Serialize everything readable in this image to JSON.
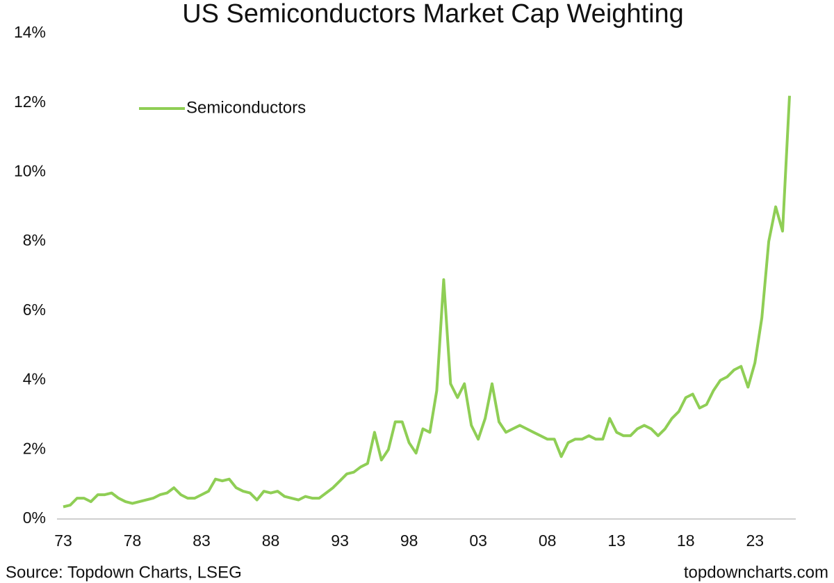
{
  "chart_data": {
    "type": "line",
    "title": "US Semiconductors Market Cap Weighting",
    "source": "Source: Topdown Charts, LSEG",
    "watermark": "topdowncharts.com",
    "legend": "upper left",
    "categories": [
      "73",
      null,
      null,
      null,
      null,
      null,
      null,
      null,
      null,
      null,
      "78",
      null,
      null,
      null,
      null,
      null,
      null,
      null,
      null,
      null,
      "83",
      null,
      null,
      null,
      null,
      null,
      null,
      null,
      null,
      null,
      "88",
      null,
      null,
      null,
      null,
      null,
      null,
      null,
      null,
      null,
      "93",
      null,
      null,
      null,
      null,
      null,
      null,
      null,
      null,
      null,
      "98",
      null,
      null,
      null,
      null,
      null,
      null,
      null,
      null,
      null,
      "03",
      null,
      null,
      null,
      null,
      null,
      null,
      null,
      null,
      null,
      "08",
      null,
      null,
      null,
      null,
      null,
      null,
      null,
      null,
      null,
      "13",
      null,
      null,
      null,
      null,
      null,
      null,
      null,
      null,
      null,
      "18",
      null,
      null,
      null,
      null,
      null,
      null,
      null,
      null,
      null,
      "23",
      null,
      null,
      null,
      null,
      null
    ],
    "series": [
      {
        "name": "Semiconductors",
        "color": "#8fce55",
        "values": [
          0.35,
          0.4,
          0.6,
          0.6,
          0.5,
          0.7,
          0.7,
          0.75,
          0.6,
          0.5,
          0.45,
          0.5,
          0.55,
          0.6,
          0.7,
          0.75,
          0.9,
          0.7,
          0.6,
          0.6,
          0.7,
          0.8,
          1.15,
          1.1,
          1.15,
          0.9,
          0.8,
          0.75,
          0.55,
          0.8,
          0.75,
          0.8,
          0.65,
          0.6,
          0.55,
          0.65,
          0.6,
          0.6,
          0.75,
          0.9,
          1.1,
          1.3,
          1.35,
          1.5,
          1.6,
          2.5,
          1.7,
          2.0,
          2.8,
          2.8,
          2.2,
          1.9,
          2.6,
          2.5,
          3.7,
          6.9,
          3.9,
          3.5,
          3.9,
          2.7,
          2.3,
          2.9,
          3.9,
          2.8,
          2.5,
          2.6,
          2.7,
          2.6,
          2.5,
          2.4,
          2.3,
          2.3,
          1.8,
          2.2,
          2.3,
          2.3,
          2.4,
          2.3,
          2.3,
          2.9,
          2.5,
          2.4,
          2.4,
          2.6,
          2.7,
          2.6,
          2.4,
          2.6,
          2.9,
          3.1,
          3.5,
          3.6,
          3.2,
          3.3,
          3.7,
          4.0,
          4.1,
          4.3,
          4.4,
          3.8,
          4.5,
          5.8,
          8.0,
          9.0,
          8.3,
          12.2
        ]
      }
    ],
    "ylim": [
      0,
      14
    ],
    "yticks": [
      {
        "value": 0,
        "label": "0%"
      },
      {
        "value": 2,
        "label": "2%"
      },
      {
        "value": 4,
        "label": "4%"
      },
      {
        "value": 6,
        "label": "6%"
      },
      {
        "value": 8,
        "label": "8%"
      },
      {
        "value": 10,
        "label": "10%"
      },
      {
        "value": 12,
        "label": "12%"
      },
      {
        "value": 14,
        "label": "14%"
      }
    ],
    "grid": false
  }
}
